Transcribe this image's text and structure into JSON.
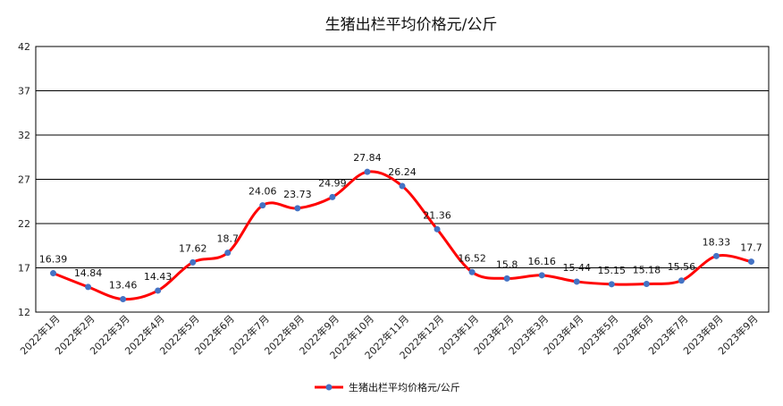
{
  "chart_data": {
    "type": "line",
    "title": "生猪出栏平均价格元/公斤",
    "xlabel": "",
    "ylabel": "",
    "ylim": [
      12,
      42
    ],
    "yticks": [
      12,
      17,
      22,
      27,
      32,
      37,
      42
    ],
    "grid": "horizontal",
    "legend_position": "bottom",
    "categories": [
      "2022年1月",
      "2022年2月",
      "2022年3月",
      "2022年4月",
      "2022年5月",
      "2022年6月",
      "2022年7月",
      "2022年8月",
      "2022年9月",
      "2022年10月",
      "2022年11月",
      "2022年12月",
      "2023年1月",
      "2023年2月",
      "2023年3月",
      "2023年4月",
      "2023年5月",
      "2023年6月",
      "2023年7月",
      "2023年8月",
      "2023年9月"
    ],
    "series": [
      {
        "name": "生猪出栏平均价格元/公斤",
        "values": [
          16.39,
          14.84,
          13.46,
          14.43,
          17.62,
          18.7,
          24.06,
          23.73,
          24.99,
          27.84,
          26.24,
          21.36,
          16.52,
          15.8,
          16.16,
          15.44,
          15.15,
          15.18,
          15.56,
          18.33,
          17.7
        ],
        "labels": [
          "16.39",
          "14.84",
          "13.46",
          "14.43",
          "17.62",
          "18.7",
          "24.06",
          "23.73",
          "24.99",
          "27.84",
          "26.24",
          "21.36",
          "16.52",
          "15.8",
          "16.16",
          "15.44",
          "15.15",
          "15.18",
          "15.56",
          "18.33",
          "17.7"
        ],
        "line_color": "#ff0000",
        "marker_color": "#4472c4"
      }
    ]
  }
}
